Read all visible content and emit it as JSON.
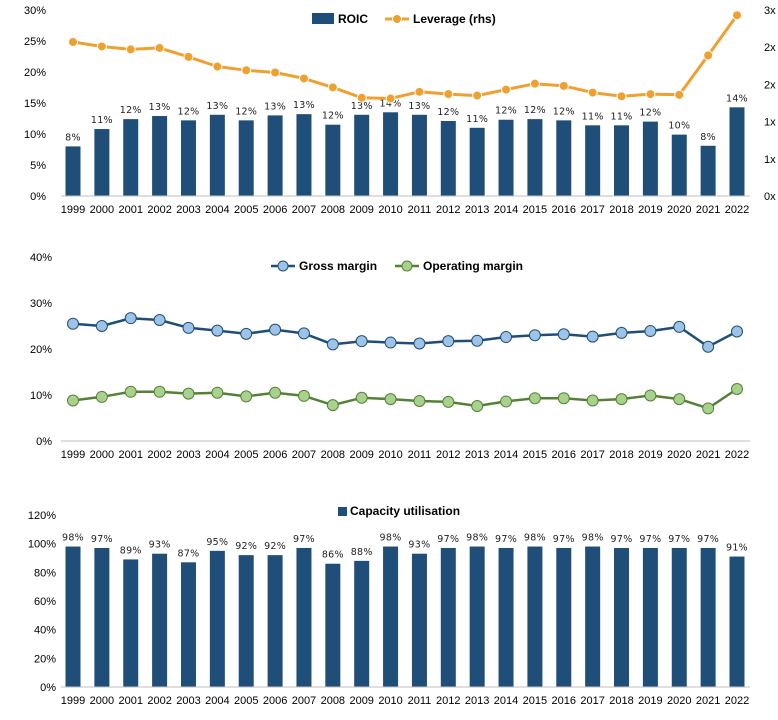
{
  "chart_data": [
    {
      "type": "bar+line",
      "title": "",
      "categories": [
        "1999",
        "2000",
        "2001",
        "2002",
        "2003",
        "2004",
        "2005",
        "2006",
        "2007",
        "2008",
        "2009",
        "2010",
        "2011",
        "2012",
        "2013",
        "2014",
        "2015",
        "2016",
        "2017",
        "2018",
        "2019",
        "2020",
        "2021",
        "2022"
      ],
      "series": [
        {
          "name": "ROIC",
          "type": "bar",
          "axis": "left",
          "values": [
            8,
            11,
            12,
            13,
            12,
            13,
            12,
            13,
            13,
            12,
            13,
            14,
            13,
            12,
            11,
            12,
            12,
            12,
            11,
            11,
            12,
            10,
            8,
            14
          ],
          "plotted_values": [
            8.0,
            10.8,
            12.4,
            12.9,
            12.2,
            13.1,
            12.2,
            13.0,
            13.2,
            11.5,
            13.1,
            13.5,
            13.1,
            12.1,
            11.0,
            12.3,
            12.4,
            12.2,
            11.4,
            11.4,
            12.0,
            9.9,
            8.1,
            14.3
          ],
          "labels": [
            "8%",
            "11%",
            "12%",
            "13%",
            "12%",
            "13%",
            "12%",
            "13%",
            "13%",
            "12%",
            "13%",
            "14%",
            "13%",
            "12%",
            "11%",
            "12%",
            "12%",
            "12%",
            "11%",
            "11%",
            "12%",
            "10%",
            "8%",
            "14%"
          ],
          "color": "#1f4e79"
        },
        {
          "name": "Leverage (rhs)",
          "type": "line",
          "axis": "right",
          "values": [
            2.57,
            2.51,
            2.47,
            2.49,
            2.37,
            2.24,
            2.19,
            2.16,
            2.08,
            1.96,
            1.82,
            1.81,
            1.9,
            1.87,
            1.85,
            1.93,
            2.01,
            1.98,
            1.89,
            1.84,
            1.87,
            1.86,
            2.39,
            2.93
          ],
          "color": "#f0a030"
        }
      ],
      "y_left": {
        "ylim": [
          0,
          30
        ],
        "ticks": [
          0,
          5,
          10,
          15,
          20,
          25,
          30
        ],
        "tick_labels": [
          "0%",
          "5%",
          "10%",
          "15%",
          "20%",
          "25%",
          "30%"
        ]
      },
      "y_right": {
        "ylim": [
          0.5,
          3.0
        ],
        "ticks": [
          0.5,
          1.0,
          1.5,
          2.0,
          2.5,
          3.0
        ],
        "tick_labels": [
          "0x",
          "1x",
          "1x",
          "2x",
          "2x",
          "3x"
        ]
      },
      "legend": "top-center",
      "grid": false
    },
    {
      "type": "line",
      "title": "",
      "categories": [
        "1999",
        "2000",
        "2001",
        "2002",
        "2003",
        "2004",
        "2005",
        "2006",
        "2007",
        "2008",
        "2009",
        "2010",
        "2011",
        "2012",
        "2013",
        "2014",
        "2015",
        "2016",
        "2017",
        "2018",
        "2019",
        "2020",
        "2021",
        "2022"
      ],
      "series": [
        {
          "name": "Gross margin",
          "values": [
            25.5,
            25.0,
            26.7,
            26.3,
            24.6,
            24.0,
            23.3,
            24.2,
            23.4,
            21.0,
            21.7,
            21.4,
            21.2,
            21.7,
            21.8,
            22.6,
            23.0,
            23.2,
            22.7,
            23.5,
            23.9,
            24.8,
            20.5,
            23.8
          ],
          "color": "#1f4e79",
          "marker_color": "#9dc3e6"
        },
        {
          "name": "Operating margin",
          "values": [
            8.8,
            9.6,
            10.7,
            10.7,
            10.3,
            10.5,
            9.7,
            10.5,
            9.8,
            7.8,
            9.4,
            9.1,
            8.7,
            8.5,
            7.6,
            8.6,
            9.3,
            9.3,
            8.8,
            9.1,
            9.9,
            9.1,
            7.1,
            11.3
          ],
          "color": "#548235",
          "marker_color": "#a9d18e"
        }
      ],
      "ylim": [
        0,
        40
      ],
      "ticks": [
        0,
        10,
        20,
        30,
        40
      ],
      "tick_labels": [
        "0%",
        "10%",
        "20%",
        "30%",
        "40%"
      ],
      "legend": "top-center",
      "grid": false
    },
    {
      "type": "bar",
      "title": "",
      "categories": [
        "1999",
        "2000",
        "2001",
        "2002",
        "2003",
        "2004",
        "2005",
        "2006",
        "2007",
        "2008",
        "2009",
        "2010",
        "2011",
        "2012",
        "2013",
        "2014",
        "2015",
        "2016",
        "2017",
        "2018",
        "2019",
        "2020",
        "2021",
        "2022"
      ],
      "series": [
        {
          "name": "Capacity utilisation",
          "values": [
            98,
            97,
            89,
            93,
            87,
            95,
            92,
            92,
            97,
            86,
            88,
            98,
            93,
            97,
            98,
            97,
            98,
            97,
            98,
            97,
            97,
            97,
            97,
            91
          ],
          "labels": [
            "98%",
            "97%",
            "89%",
            "93%",
            "87%",
            "95%",
            "92%",
            "92%",
            "97%",
            "86%",
            "88%",
            "98%",
            "93%",
            "97%",
            "98%",
            "97%",
            "98%",
            "97%",
            "98%",
            "97%",
            "97%",
            "97%",
            "97%",
            "91%"
          ],
          "color": "#1f4e79"
        }
      ],
      "ylim": [
        0,
        120
      ],
      "ticks": [
        0,
        20,
        40,
        60,
        80,
        100,
        120
      ],
      "tick_labels": [
        "0%",
        "20%",
        "40%",
        "60%",
        "80%",
        "100%",
        "120%"
      ],
      "legend": "top-center",
      "grid": false
    }
  ]
}
